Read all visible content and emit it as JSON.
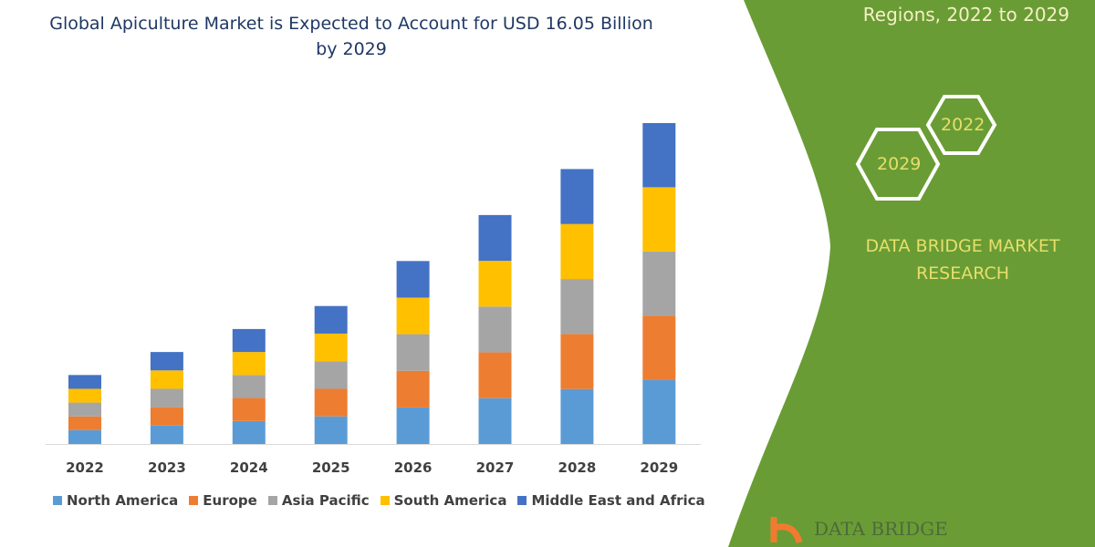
{
  "chart_data": {
    "type": "bar",
    "stacked": true,
    "title": "Global Apiculture Market is Expected to Account for USD 16.05 Billion by 2029",
    "xlabel": "",
    "ylabel": "",
    "ylim": [
      0,
      16.05
    ],
    "grid": false,
    "legend_position": "bottom",
    "categories": [
      "2022",
      "2023",
      "2024",
      "2025",
      "2026",
      "2027",
      "2028",
      "2029"
    ],
    "series": [
      {
        "name": "North America",
        "color": "#5b9bd5",
        "values": [
          0.69,
          0.92,
          1.15,
          1.38,
          1.83,
          2.29,
          2.75,
          3.21
        ]
      },
      {
        "name": "Europe",
        "color": "#ed7d31",
        "values": [
          0.69,
          0.92,
          1.15,
          1.38,
          1.83,
          2.29,
          2.75,
          3.21
        ]
      },
      {
        "name": "Asia Pacific",
        "color": "#a5a5a5",
        "values": [
          0.69,
          0.92,
          1.15,
          1.38,
          1.83,
          2.29,
          2.75,
          3.21
        ]
      },
      {
        "name": "South America",
        "color": "#ffc000",
        "values": [
          0.69,
          0.92,
          1.15,
          1.38,
          1.83,
          2.29,
          2.75,
          3.21
        ]
      },
      {
        "name": "Middle East and Africa",
        "color": "#4472c4",
        "values": [
          0.69,
          0.92,
          1.15,
          1.38,
          1.83,
          2.29,
          2.75,
          3.21
        ]
      }
    ]
  },
  "side_panel": {
    "subtitle": "Regions, 2022 to 2029",
    "hex_years": [
      "2029",
      "2022"
    ],
    "brand_line1": "DATA BRIDGE MARKET",
    "brand_line2": "RESEARCH",
    "logo_text": "DATA BRIDGE",
    "panel_color": "#6a9c35"
  }
}
